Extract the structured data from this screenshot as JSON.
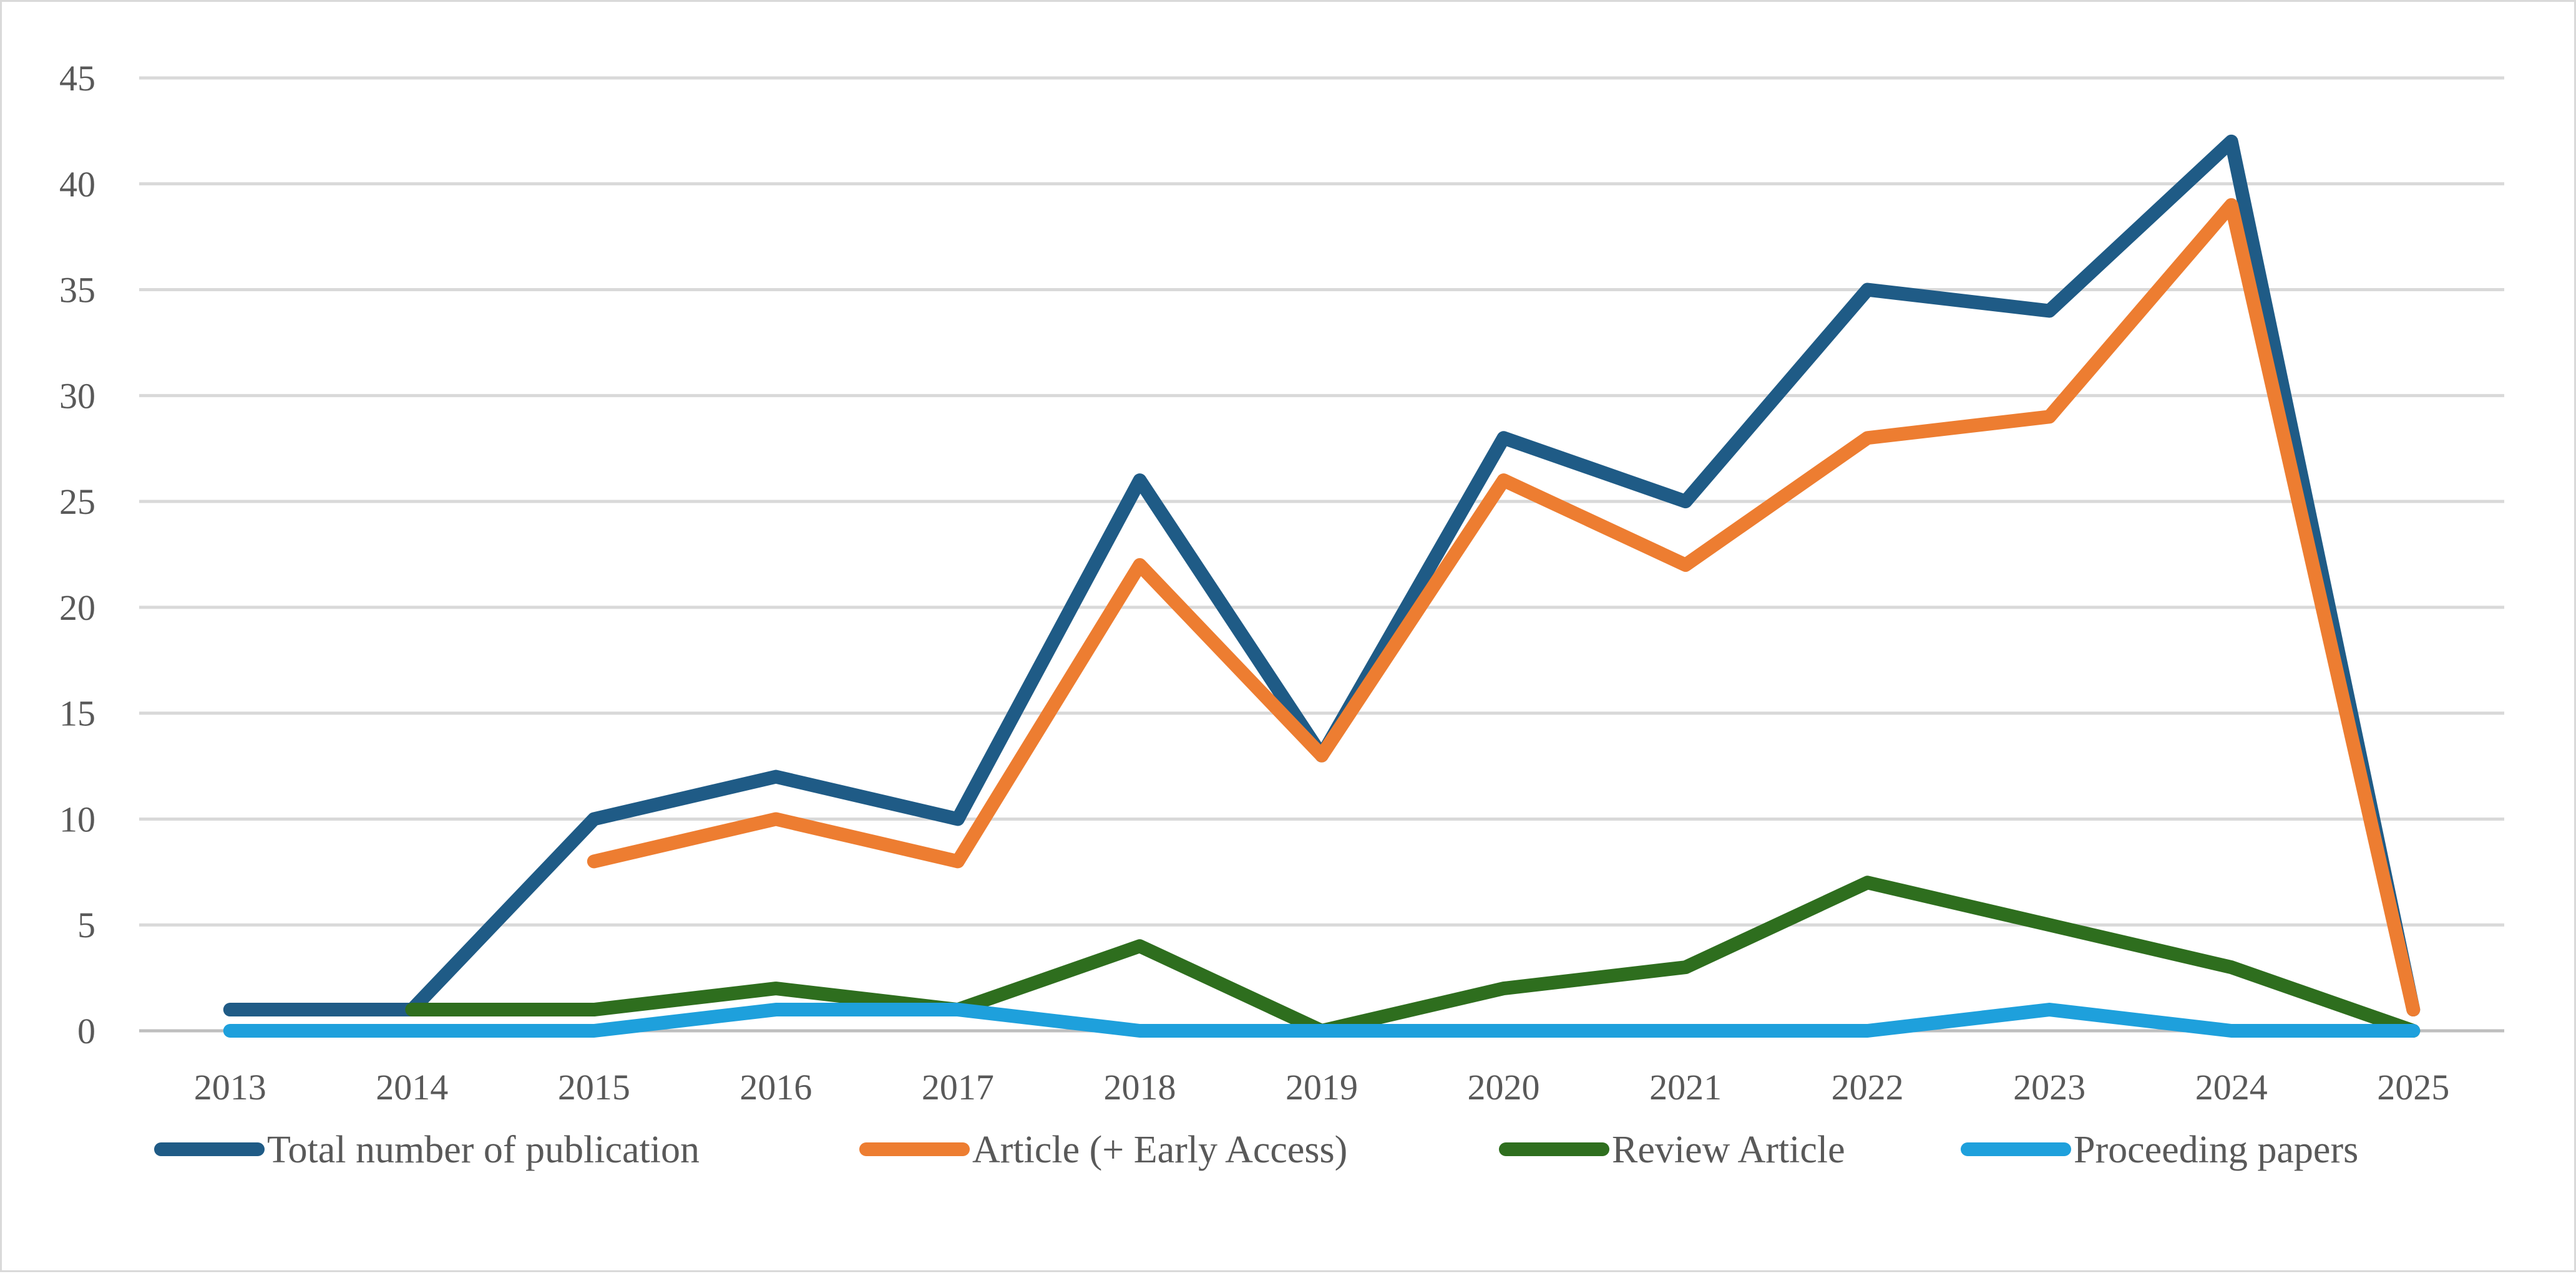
{
  "chart_data": {
    "type": "line",
    "title": "",
    "xlabel": "",
    "ylabel": "",
    "categories": [
      "2013",
      "2014",
      "2015",
      "2016",
      "2017",
      "2018",
      "2019",
      "2020",
      "2021",
      "2022",
      "2023",
      "2024",
      "2025"
    ],
    "ylim": [
      0,
      45
    ],
    "yticks": [
      0,
      5,
      10,
      15,
      20,
      25,
      30,
      35,
      40,
      45
    ],
    "grid": true,
    "legend_position": "bottom",
    "series": [
      {
        "name": "Total number of publication",
        "color": "#1f5b86",
        "values": [
          1,
          1,
          10,
          12,
          10,
          26,
          13,
          28,
          25,
          35,
          34,
          42,
          1
        ]
      },
      {
        "name": "Article (+ Early Access)",
        "color": "#ed7d31",
        "values": [
          null,
          null,
          8,
          10,
          8,
          22,
          13,
          26,
          22,
          28,
          29,
          39,
          1
        ]
      },
      {
        "name": "Review Article",
        "color": "#2e6e1e",
        "values": [
          null,
          1,
          1,
          2,
          1,
          4,
          0,
          2,
          3,
          7,
          5,
          3,
          0
        ]
      },
      {
        "name": "Proceeding papers",
        "color": "#1ea0dc",
        "values": [
          0,
          0,
          0,
          1,
          1,
          0,
          0,
          0,
          0,
          0,
          1,
          0,
          0
        ]
      }
    ]
  }
}
